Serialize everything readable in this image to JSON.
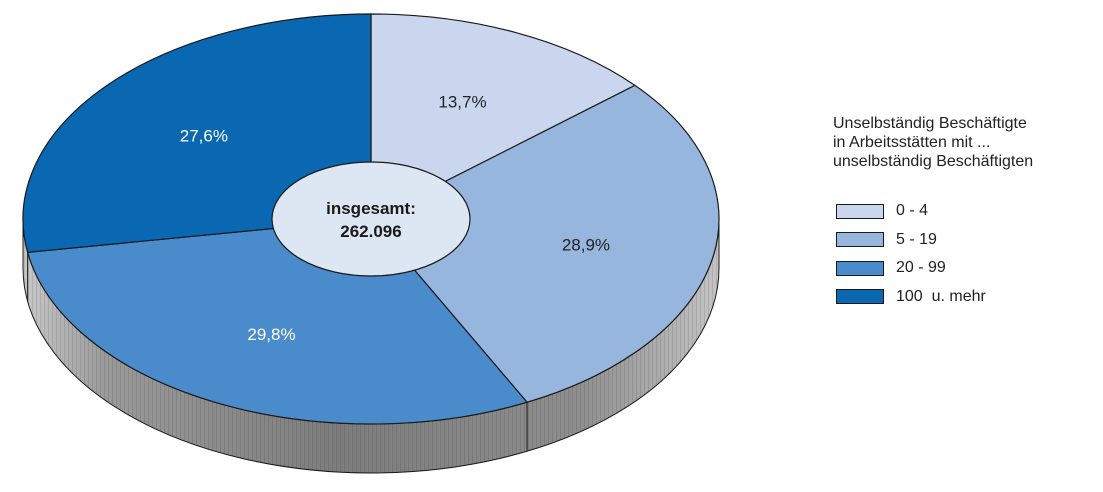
{
  "chart_data": {
    "type": "pie",
    "center_label": {
      "line1": "insgesamt:",
      "line2": "262.096"
    },
    "legend": {
      "title_lines": [
        "Unselbständig Beschäftigte",
        "in Arbeitsstätten mit ...",
        "unselbständig Beschäftigten"
      ],
      "placement": "right"
    },
    "slices": [
      {
        "name": "0 - 4",
        "value": 13.7,
        "label": "13,7%",
        "color": "#c9d6ed",
        "label_color": "#222222"
      },
      {
        "name": "5 - 19",
        "value": 28.9,
        "label": "28,9%",
        "color": "#97b6dd",
        "label_color": "#222222"
      },
      {
        "name": "20 - 99",
        "value": 29.8,
        "label": "29,8%",
        "color": "#4a8ccb",
        "label_color": "#ffffff"
      },
      {
        "name": "100  u. mehr",
        "value": 27.6,
        "label": "27,6%",
        "color": "#0a68b2",
        "label_color": "#ffffff"
      }
    ],
    "center_fill": "#dde6f3",
    "edge_color": "#1a1a1a"
  }
}
